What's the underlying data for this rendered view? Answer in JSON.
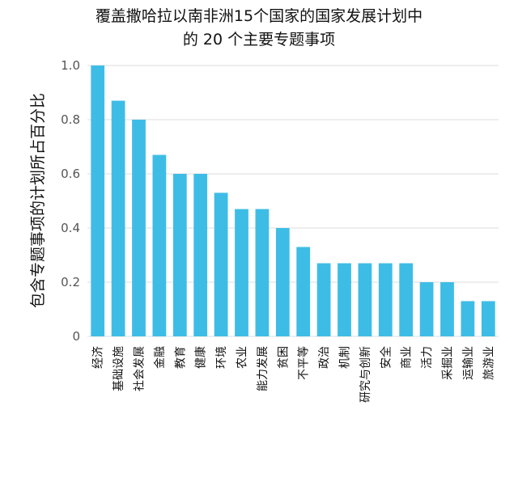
{
  "chart_data": {
    "type": "bar",
    "title_line1": "覆盖撒哈拉以南非洲15个国家的国家发展计划中",
    "title_line2": "的 20 个主要专题事项",
    "xlabel": "",
    "ylabel": "包含专题事项的计划所占百分比",
    "ylim": [
      0,
      1.0
    ],
    "yticks": [
      0,
      0.2,
      0.4,
      0.6,
      0.8,
      1.0
    ],
    "ytick_labels": [
      "0",
      "0.2",
      "0.4",
      "0.6",
      "0.8",
      "1.0"
    ],
    "grid": true,
    "bar_color": "#3dbde6",
    "categories": [
      "经济",
      "基础设施",
      "社会发展",
      "金融",
      "教育",
      "健康",
      "环境",
      "农业",
      "能力发展",
      "贫困",
      "不平等",
      "政治",
      "机制",
      "研究与创新",
      "安全",
      "商业",
      "活力",
      "采掘业",
      "运输业",
      "旅游业"
    ],
    "values": [
      1.0,
      0.87,
      0.8,
      0.67,
      0.6,
      0.6,
      0.53,
      0.47,
      0.47,
      0.4,
      0.33,
      0.27,
      0.27,
      0.27,
      0.27,
      0.27,
      0.2,
      0.2,
      0.13,
      0.13
    ]
  }
}
